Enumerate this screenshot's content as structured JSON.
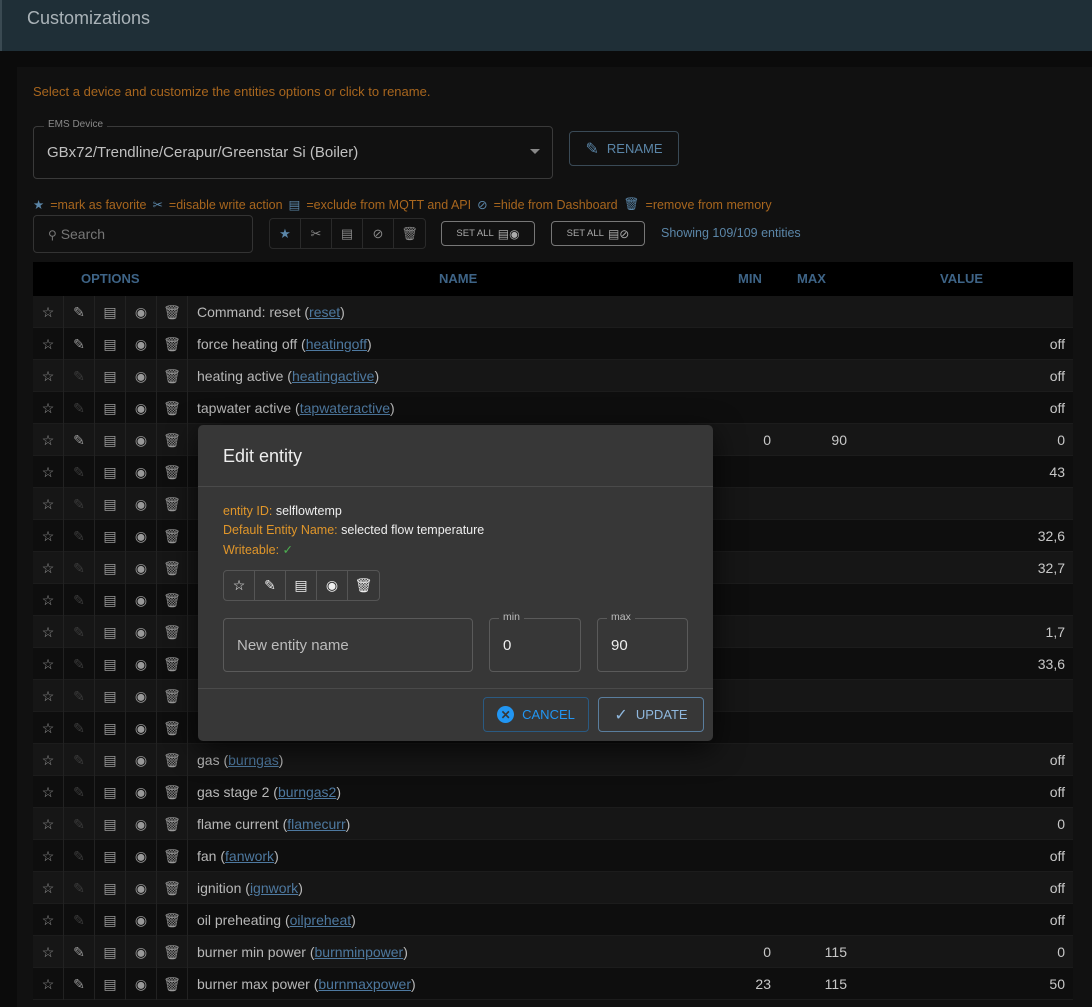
{
  "header": {
    "title": "Customizations"
  },
  "hint": "Select a device and customize the entities options or click to rename.",
  "device": {
    "label": "EMS Device",
    "value": "GBx72/Trendline/Cerapur/Greenstar Si (Boiler)"
  },
  "rename_label": "RENAME",
  "legend": [
    "=mark as favorite",
    "=disable write action",
    "=exclude from MQTT and API",
    "=hide from Dashboard",
    "=remove from memory"
  ],
  "search_placeholder": "Search",
  "set_all_1": "SET ALL",
  "set_all_2": "SET ALL",
  "showing": "Showing 109/109 entities",
  "columns": {
    "options": "OPTIONS",
    "name": "NAME",
    "min": "MIN",
    "max": "MAX",
    "value": "VALUE"
  },
  "rows": [
    {
      "name": "Command: reset",
      "id": "reset",
      "min": "",
      "max": "",
      "value": "",
      "writeable": true
    },
    {
      "name": "force heating off",
      "id": "heatingoff",
      "min": "",
      "max": "",
      "value": "off",
      "writeable": true
    },
    {
      "name": "heating active",
      "id": "heatingactive",
      "min": "",
      "max": "",
      "value": "off",
      "writeable": false
    },
    {
      "name": "tapwater active",
      "id": "tapwateractive",
      "min": "",
      "max": "",
      "value": "off",
      "writeable": false
    },
    {
      "name": "",
      "id": "",
      "min": "0",
      "max": "90",
      "value": "0",
      "writeable": true
    },
    {
      "name": "",
      "id": "",
      "min": "",
      "max": "",
      "value": "43",
      "writeable": false
    },
    {
      "name": "",
      "id": "",
      "min": "",
      "max": "",
      "value": "",
      "writeable": false
    },
    {
      "name": "",
      "id": "",
      "min": "",
      "max": "",
      "value": "32,6",
      "writeable": false
    },
    {
      "name": "",
      "id": "",
      "min": "",
      "max": "",
      "value": "32,7",
      "writeable": false
    },
    {
      "name": "",
      "id": "",
      "min": "",
      "max": "",
      "value": "",
      "writeable": false
    },
    {
      "name": "",
      "id": "",
      "min": "",
      "max": "",
      "value": "1,7",
      "writeable": false
    },
    {
      "name": "",
      "id": "",
      "min": "",
      "max": "",
      "value": "33,6",
      "writeable": false
    },
    {
      "name": "",
      "id": "",
      "min": "",
      "max": "",
      "value": "",
      "writeable": false
    },
    {
      "name": "",
      "id": "",
      "min": "",
      "max": "",
      "value": "",
      "writeable": false
    },
    {
      "name": "gas",
      "id": "burngas",
      "min": "",
      "max": "",
      "value": "off",
      "writeable": false
    },
    {
      "name": "gas stage 2",
      "id": "burngas2",
      "min": "",
      "max": "",
      "value": "off",
      "writeable": false
    },
    {
      "name": "flame current",
      "id": "flamecurr",
      "min": "",
      "max": "",
      "value": "0",
      "writeable": false
    },
    {
      "name": "fan",
      "id": "fanwork",
      "min": "",
      "max": "",
      "value": "off",
      "writeable": false
    },
    {
      "name": "ignition",
      "id": "ignwork",
      "min": "",
      "max": "",
      "value": "off",
      "writeable": false
    },
    {
      "name": "oil preheating",
      "id": "oilpreheat",
      "min": "",
      "max": "",
      "value": "off",
      "writeable": false
    },
    {
      "name": "burner min power",
      "id": "burnminpower",
      "min": "0",
      "max": "115",
      "value": "0",
      "writeable": true
    },
    {
      "name": "burner max power",
      "id": "burnmaxpower",
      "min": "23",
      "max": "115",
      "value": "50",
      "writeable": true
    }
  ],
  "modal": {
    "title": "Edit entity",
    "entity_id_label": "entity ID:",
    "entity_id": "selflowtemp",
    "default_name_label": "Default Entity Name:",
    "default_name": "selected flow temperature",
    "writeable_label": "Writeable:",
    "writeable_mark": "✓",
    "name_placeholder": "New entity name",
    "min_label": "min",
    "min_value": "0",
    "max_label": "max",
    "max_value": "90",
    "cancel": "CANCEL",
    "update": "UPDATE"
  }
}
